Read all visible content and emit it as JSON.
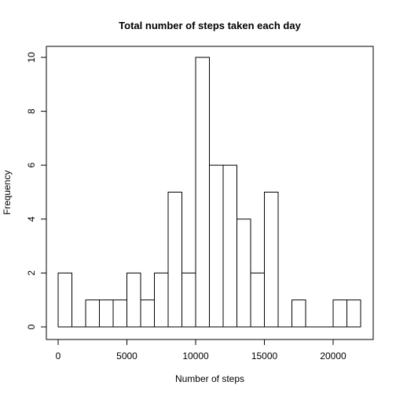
{
  "chart_data": {
    "type": "bar",
    "subtype": "histogram",
    "title": "Total number of steps taken each day",
    "xlabel": "Number of steps",
    "ylabel": "Frequency",
    "bin_width": 1000,
    "bins": [
      {
        "start": 0,
        "end": 1000,
        "count": 2
      },
      {
        "start": 1000,
        "end": 2000,
        "count": 0
      },
      {
        "start": 2000,
        "end": 3000,
        "count": 1
      },
      {
        "start": 3000,
        "end": 4000,
        "count": 1
      },
      {
        "start": 4000,
        "end": 5000,
        "count": 1
      },
      {
        "start": 5000,
        "end": 6000,
        "count": 2
      },
      {
        "start": 6000,
        "end": 7000,
        "count": 1
      },
      {
        "start": 7000,
        "end": 8000,
        "count": 2
      },
      {
        "start": 8000,
        "end": 9000,
        "count": 5
      },
      {
        "start": 9000,
        "end": 10000,
        "count": 2
      },
      {
        "start": 10000,
        "end": 11000,
        "count": 10
      },
      {
        "start": 11000,
        "end": 12000,
        "count": 6
      },
      {
        "start": 12000,
        "end": 13000,
        "count": 6
      },
      {
        "start": 13000,
        "end": 14000,
        "count": 4
      },
      {
        "start": 14000,
        "end": 15000,
        "count": 2
      },
      {
        "start": 15000,
        "end": 16000,
        "count": 5
      },
      {
        "start": 16000,
        "end": 17000,
        "count": 0
      },
      {
        "start": 17000,
        "end": 18000,
        "count": 1
      },
      {
        "start": 18000,
        "end": 19000,
        "count": 0
      },
      {
        "start": 19000,
        "end": 20000,
        "count": 0
      },
      {
        "start": 20000,
        "end": 21000,
        "count": 1
      },
      {
        "start": 21000,
        "end": 22000,
        "count": 1
      }
    ],
    "xlim": [
      0,
      22000
    ],
    "ylim": [
      0,
      10
    ],
    "x_ticks": [
      0,
      5000,
      10000,
      15000,
      20000
    ],
    "y_ticks": [
      0,
      2,
      4,
      6,
      8,
      10
    ],
    "grid": false,
    "legend": "none",
    "colors": {
      "bar_fill": "#ffffff",
      "bar_stroke": "#000000",
      "axis": "#000000"
    }
  }
}
